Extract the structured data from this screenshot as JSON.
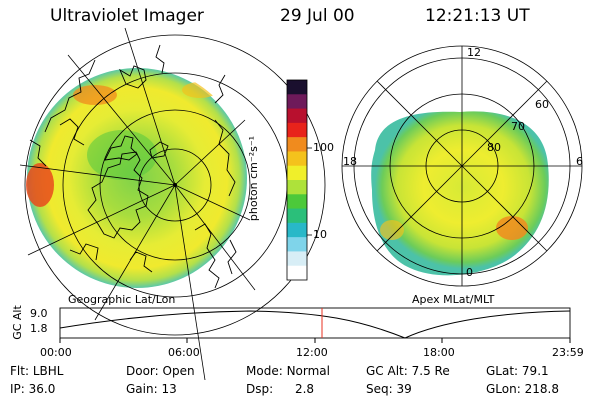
{
  "header": {
    "title": "Ultraviolet Imager",
    "date": "29 Jul 00",
    "time": "12:21:13 UT"
  },
  "left_map": {
    "caption": "Geographic Lat/Lon"
  },
  "right_map": {
    "caption": "Apex MLat/MLT",
    "mlt_labels": {
      "top": "12",
      "left": "18",
      "right": "6",
      "bottom": "0"
    },
    "lat_labels": [
      "60",
      "70",
      "80"
    ]
  },
  "colorbar": {
    "unit_label": "photon cm⁻²s⁻¹",
    "tick_labels": [
      "100",
      "10"
    ],
    "colors": [
      "#1a0f2e",
      "#6e1a5a",
      "#b8102e",
      "#e8231b",
      "#f08b1e",
      "#f4c21c",
      "#f0ef2a",
      "#aee23a",
      "#4cc93a",
      "#2bbf7a",
      "#28b8c8",
      "#7fd4ea",
      "#d8eef6",
      "#ffffff"
    ]
  },
  "timeline": {
    "axis_label": "GC Alt",
    "y_labels": [
      "9.0",
      "1.8"
    ],
    "time_labels": [
      "00:00",
      "06:00",
      "12:00",
      "18:00",
      "23:59"
    ],
    "current_marker_color": "#e83020"
  },
  "info": {
    "row1": [
      {
        "label": "Flt:",
        "value": "LBHL"
      },
      {
        "label": "Door:",
        "value": "Open"
      },
      {
        "label": "Mode:",
        "value": "Normal"
      },
      {
        "label": "GC Alt:",
        "value": "7.5 Re"
      },
      {
        "label": "GLat:",
        "value": "79.1"
      }
    ],
    "row2": [
      {
        "label": "IP:",
        "value": "36.0"
      },
      {
        "label": "Gain:",
        "value": "13"
      },
      {
        "label": "Dsp:",
        "value": "2.8"
      },
      {
        "label": "Seq:",
        "value": "39"
      },
      {
        "label": "GLon:",
        "value": "218.8"
      }
    ]
  }
}
